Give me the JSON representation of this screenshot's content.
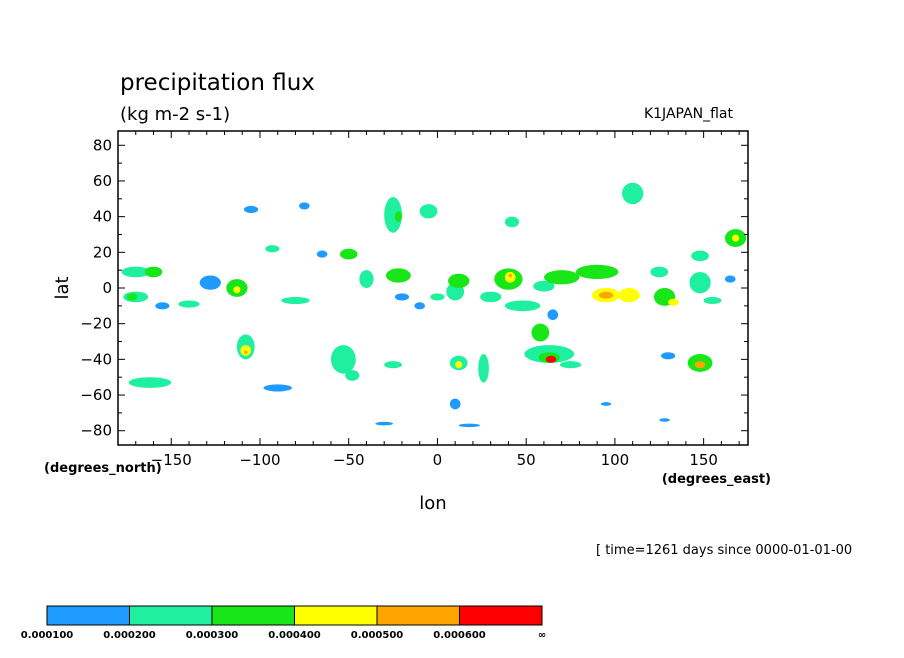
{
  "chart_data": {
    "type": "heatmap",
    "title": "precipitation flux",
    "subtitle": "(kg m-2 s-1)",
    "run_label": "K1JAPAN_flat",
    "xlabel": "lon",
    "ylabel": "lat",
    "x_unit_label": "(degrees_east)",
    "y_unit_label": "(degrees_north)",
    "time_label": "[ time=1261 days since 0000-01-01-00",
    "xlim": [
      -180,
      175
    ],
    "ylim": [
      -88,
      88
    ],
    "x_ticks": [
      -150,
      -100,
      -50,
      0,
      50,
      100,
      150
    ],
    "x_tick_labels": [
      "−150",
      "−100",
      "−50",
      "0",
      "50",
      "100",
      "150"
    ],
    "y_ticks": [
      80,
      60,
      40,
      20,
      0,
      -20,
      -40,
      -60,
      -80
    ],
    "y_tick_labels": [
      "80",
      "60",
      "40",
      "20",
      "0",
      "−20",
      "−40",
      "−60",
      "−80"
    ],
    "grid": false,
    "levels": [
      0.0001,
      0.0002,
      0.0003,
      0.0004,
      0.0005,
      0.0006
    ],
    "colorbar": {
      "colors": [
        "#1f9bff",
        "#1ff0a0",
        "#19e619",
        "#ffff00",
        "#ffa500",
        "#ff0000"
      ],
      "labels": [
        "0.000100",
        "0.000200",
        "0.000300",
        "0.000400",
        "0.000500",
        "0.000600",
        "∞"
      ]
    },
    "cells": [
      {
        "lon": -170,
        "lat": 9,
        "rx": 8,
        "ry": 3,
        "level": 2
      },
      {
        "lon": -160,
        "lat": 9,
        "rx": 5,
        "ry": 3,
        "level": 3
      },
      {
        "lon": -170,
        "lat": -5,
        "rx": 7,
        "ry": 3,
        "level": 2
      },
      {
        "lon": -172,
        "lat": -5,
        "rx": 3,
        "ry": 2,
        "level": 3
      },
      {
        "lon": -155,
        "lat": -10,
        "rx": 4,
        "ry": 2,
        "level": 1
      },
      {
        "lon": -140,
        "lat": -9,
        "rx": 6,
        "ry": 2,
        "level": 2
      },
      {
        "lon": -128,
        "lat": 3,
        "rx": 6,
        "ry": 4,
        "level": 1
      },
      {
        "lon": -113,
        "lat": 0,
        "rx": 6,
        "ry": 5,
        "level": 3
      },
      {
        "lon": -113,
        "lat": -1,
        "rx": 2,
        "ry": 2,
        "level": 4
      },
      {
        "lon": -105,
        "lat": 44,
        "rx": 4,
        "ry": 2,
        "level": 1
      },
      {
        "lon": -93,
        "lat": 22,
        "rx": 4,
        "ry": 2,
        "level": 2
      },
      {
        "lon": -80,
        "lat": -7,
        "rx": 8,
        "ry": 2,
        "level": 2
      },
      {
        "lon": -75,
        "lat": 46,
        "rx": 3,
        "ry": 2,
        "level": 1
      },
      {
        "lon": -65,
        "lat": 19,
        "rx": 3,
        "ry": 2,
        "level": 1
      },
      {
        "lon": -50,
        "lat": 19,
        "rx": 5,
        "ry": 3,
        "level": 3
      },
      {
        "lon": -108,
        "lat": -33,
        "rx": 5,
        "ry": 7,
        "level": 2
      },
      {
        "lon": -108,
        "lat": -35,
        "rx": 3,
        "ry": 3,
        "level": 4
      },
      {
        "lon": -108,
        "lat": -36,
        "rx": 1,
        "ry": 1,
        "level": 5
      },
      {
        "lon": -162,
        "lat": -53,
        "rx": 12,
        "ry": 3,
        "level": 2
      },
      {
        "lon": -90,
        "lat": -56,
        "rx": 8,
        "ry": 2,
        "level": 1
      },
      {
        "lon": -53,
        "lat": -40,
        "rx": 7,
        "ry": 8,
        "level": 2
      },
      {
        "lon": -48,
        "lat": -49,
        "rx": 4,
        "ry": 3,
        "level": 2
      },
      {
        "lon": -25,
        "lat": -43,
        "rx": 5,
        "ry": 2,
        "level": 2
      },
      {
        "lon": -25,
        "lat": 41,
        "rx": 5,
        "ry": 10,
        "level": 2
      },
      {
        "lon": -22,
        "lat": 40,
        "rx": 2,
        "ry": 3,
        "level": 3
      },
      {
        "lon": -5,
        "lat": 43,
        "rx": 5,
        "ry": 4,
        "level": 2
      },
      {
        "lon": -22,
        "lat": 7,
        "rx": 7,
        "ry": 4,
        "level": 3
      },
      {
        "lon": -40,
        "lat": 5,
        "rx": 4,
        "ry": 5,
        "level": 2
      },
      {
        "lon": -20,
        "lat": -5,
        "rx": 4,
        "ry": 2,
        "level": 1
      },
      {
        "lon": 12,
        "lat": 4,
        "rx": 6,
        "ry": 4,
        "level": 3
      },
      {
        "lon": 10,
        "lat": -2,
        "rx": 5,
        "ry": 5,
        "level": 2
      },
      {
        "lon": 0,
        "lat": -5,
        "rx": 4,
        "ry": 2,
        "level": 2
      },
      {
        "lon": 12,
        "lat": -42,
        "rx": 5,
        "ry": 4,
        "level": 2
      },
      {
        "lon": 12,
        "lat": -43,
        "rx": 2,
        "ry": 2,
        "level": 4
      },
      {
        "lon": 26,
        "lat": -45,
        "rx": 3,
        "ry": 8,
        "level": 2
      },
      {
        "lon": 10,
        "lat": -65,
        "rx": 3,
        "ry": 3,
        "level": 1
      },
      {
        "lon": 40,
        "lat": 5,
        "rx": 8,
        "ry": 6,
        "level": 3
      },
      {
        "lon": 41,
        "lat": 6,
        "rx": 3,
        "ry": 3,
        "level": 4
      },
      {
        "lon": 41,
        "lat": 7,
        "rx": 1,
        "ry": 1,
        "level": 5
      },
      {
        "lon": 30,
        "lat": -5,
        "rx": 6,
        "ry": 3,
        "level": 2
      },
      {
        "lon": 48,
        "lat": -10,
        "rx": 10,
        "ry": 3,
        "level": 2
      },
      {
        "lon": 42,
        "lat": 37,
        "rx": 4,
        "ry": 3,
        "level": 2
      },
      {
        "lon": 60,
        "lat": 1,
        "rx": 6,
        "ry": 3,
        "level": 2
      },
      {
        "lon": 70,
        "lat": 6,
        "rx": 10,
        "ry": 4,
        "level": 3
      },
      {
        "lon": 90,
        "lat": 9,
        "rx": 12,
        "ry": 4,
        "level": 3
      },
      {
        "lon": 95,
        "lat": -4,
        "rx": 8,
        "ry": 4,
        "level": 4
      },
      {
        "lon": 95,
        "lat": -4,
        "rx": 4,
        "ry": 2,
        "level": 5
      },
      {
        "lon": 108,
        "lat": -4,
        "rx": 6,
        "ry": 4,
        "level": 4
      },
      {
        "lon": 63,
        "lat": -37,
        "rx": 14,
        "ry": 5,
        "level": 2
      },
      {
        "lon": 63,
        "lat": -39,
        "rx": 6,
        "ry": 3,
        "level": 3
      },
      {
        "lon": 64,
        "lat": -40,
        "rx": 3,
        "ry": 2,
        "level": 6
      },
      {
        "lon": 58,
        "lat": -25,
        "rx": 5,
        "ry": 5,
        "level": 3
      },
      {
        "lon": 75,
        "lat": -43,
        "rx": 6,
        "ry": 2,
        "level": 2
      },
      {
        "lon": 110,
        "lat": 53,
        "rx": 6,
        "ry": 6,
        "level": 2
      },
      {
        "lon": 125,
        "lat": 9,
        "rx": 5,
        "ry": 3,
        "level": 2
      },
      {
        "lon": 128,
        "lat": -5,
        "rx": 6,
        "ry": 5,
        "level": 3
      },
      {
        "lon": 133,
        "lat": -8,
        "rx": 3,
        "ry": 2,
        "level": 4
      },
      {
        "lon": 148,
        "lat": 3,
        "rx": 6,
        "ry": 6,
        "level": 2
      },
      {
        "lon": 148,
        "lat": 18,
        "rx": 5,
        "ry": 3,
        "level": 2
      },
      {
        "lon": 155,
        "lat": -7,
        "rx": 5,
        "ry": 2,
        "level": 2
      },
      {
        "lon": 148,
        "lat": -42,
        "rx": 7,
        "ry": 5,
        "level": 3
      },
      {
        "lon": 148,
        "lat": -43,
        "rx": 3,
        "ry": 2,
        "level": 5
      },
      {
        "lon": 130,
        "lat": -38,
        "rx": 4,
        "ry": 2,
        "level": 1
      },
      {
        "lon": 168,
        "lat": 28,
        "rx": 6,
        "ry": 5,
        "level": 3
      },
      {
        "lon": 168,
        "lat": 28,
        "rx": 2,
        "ry": 2,
        "level": 4
      },
      {
        "lon": 165,
        "lat": 5,
        "rx": 3,
        "ry": 2,
        "level": 1
      },
      {
        "lon": 95,
        "lat": -65,
        "rx": 3,
        "ry": 1,
        "level": 1
      },
      {
        "lon": 128,
        "lat": -74,
        "rx": 3,
        "ry": 1,
        "level": 1
      },
      {
        "lon": 18,
        "lat": -77,
        "rx": 6,
        "ry": 1,
        "level": 1
      },
      {
        "lon": -30,
        "lat": -76,
        "rx": 5,
        "ry": 1,
        "level": 1
      },
      {
        "lon": -10,
        "lat": -10,
        "rx": 3,
        "ry": 2,
        "level": 1
      },
      {
        "lon": 65,
        "lat": -15,
        "rx": 3,
        "ry": 3,
        "level": 1
      }
    ]
  }
}
